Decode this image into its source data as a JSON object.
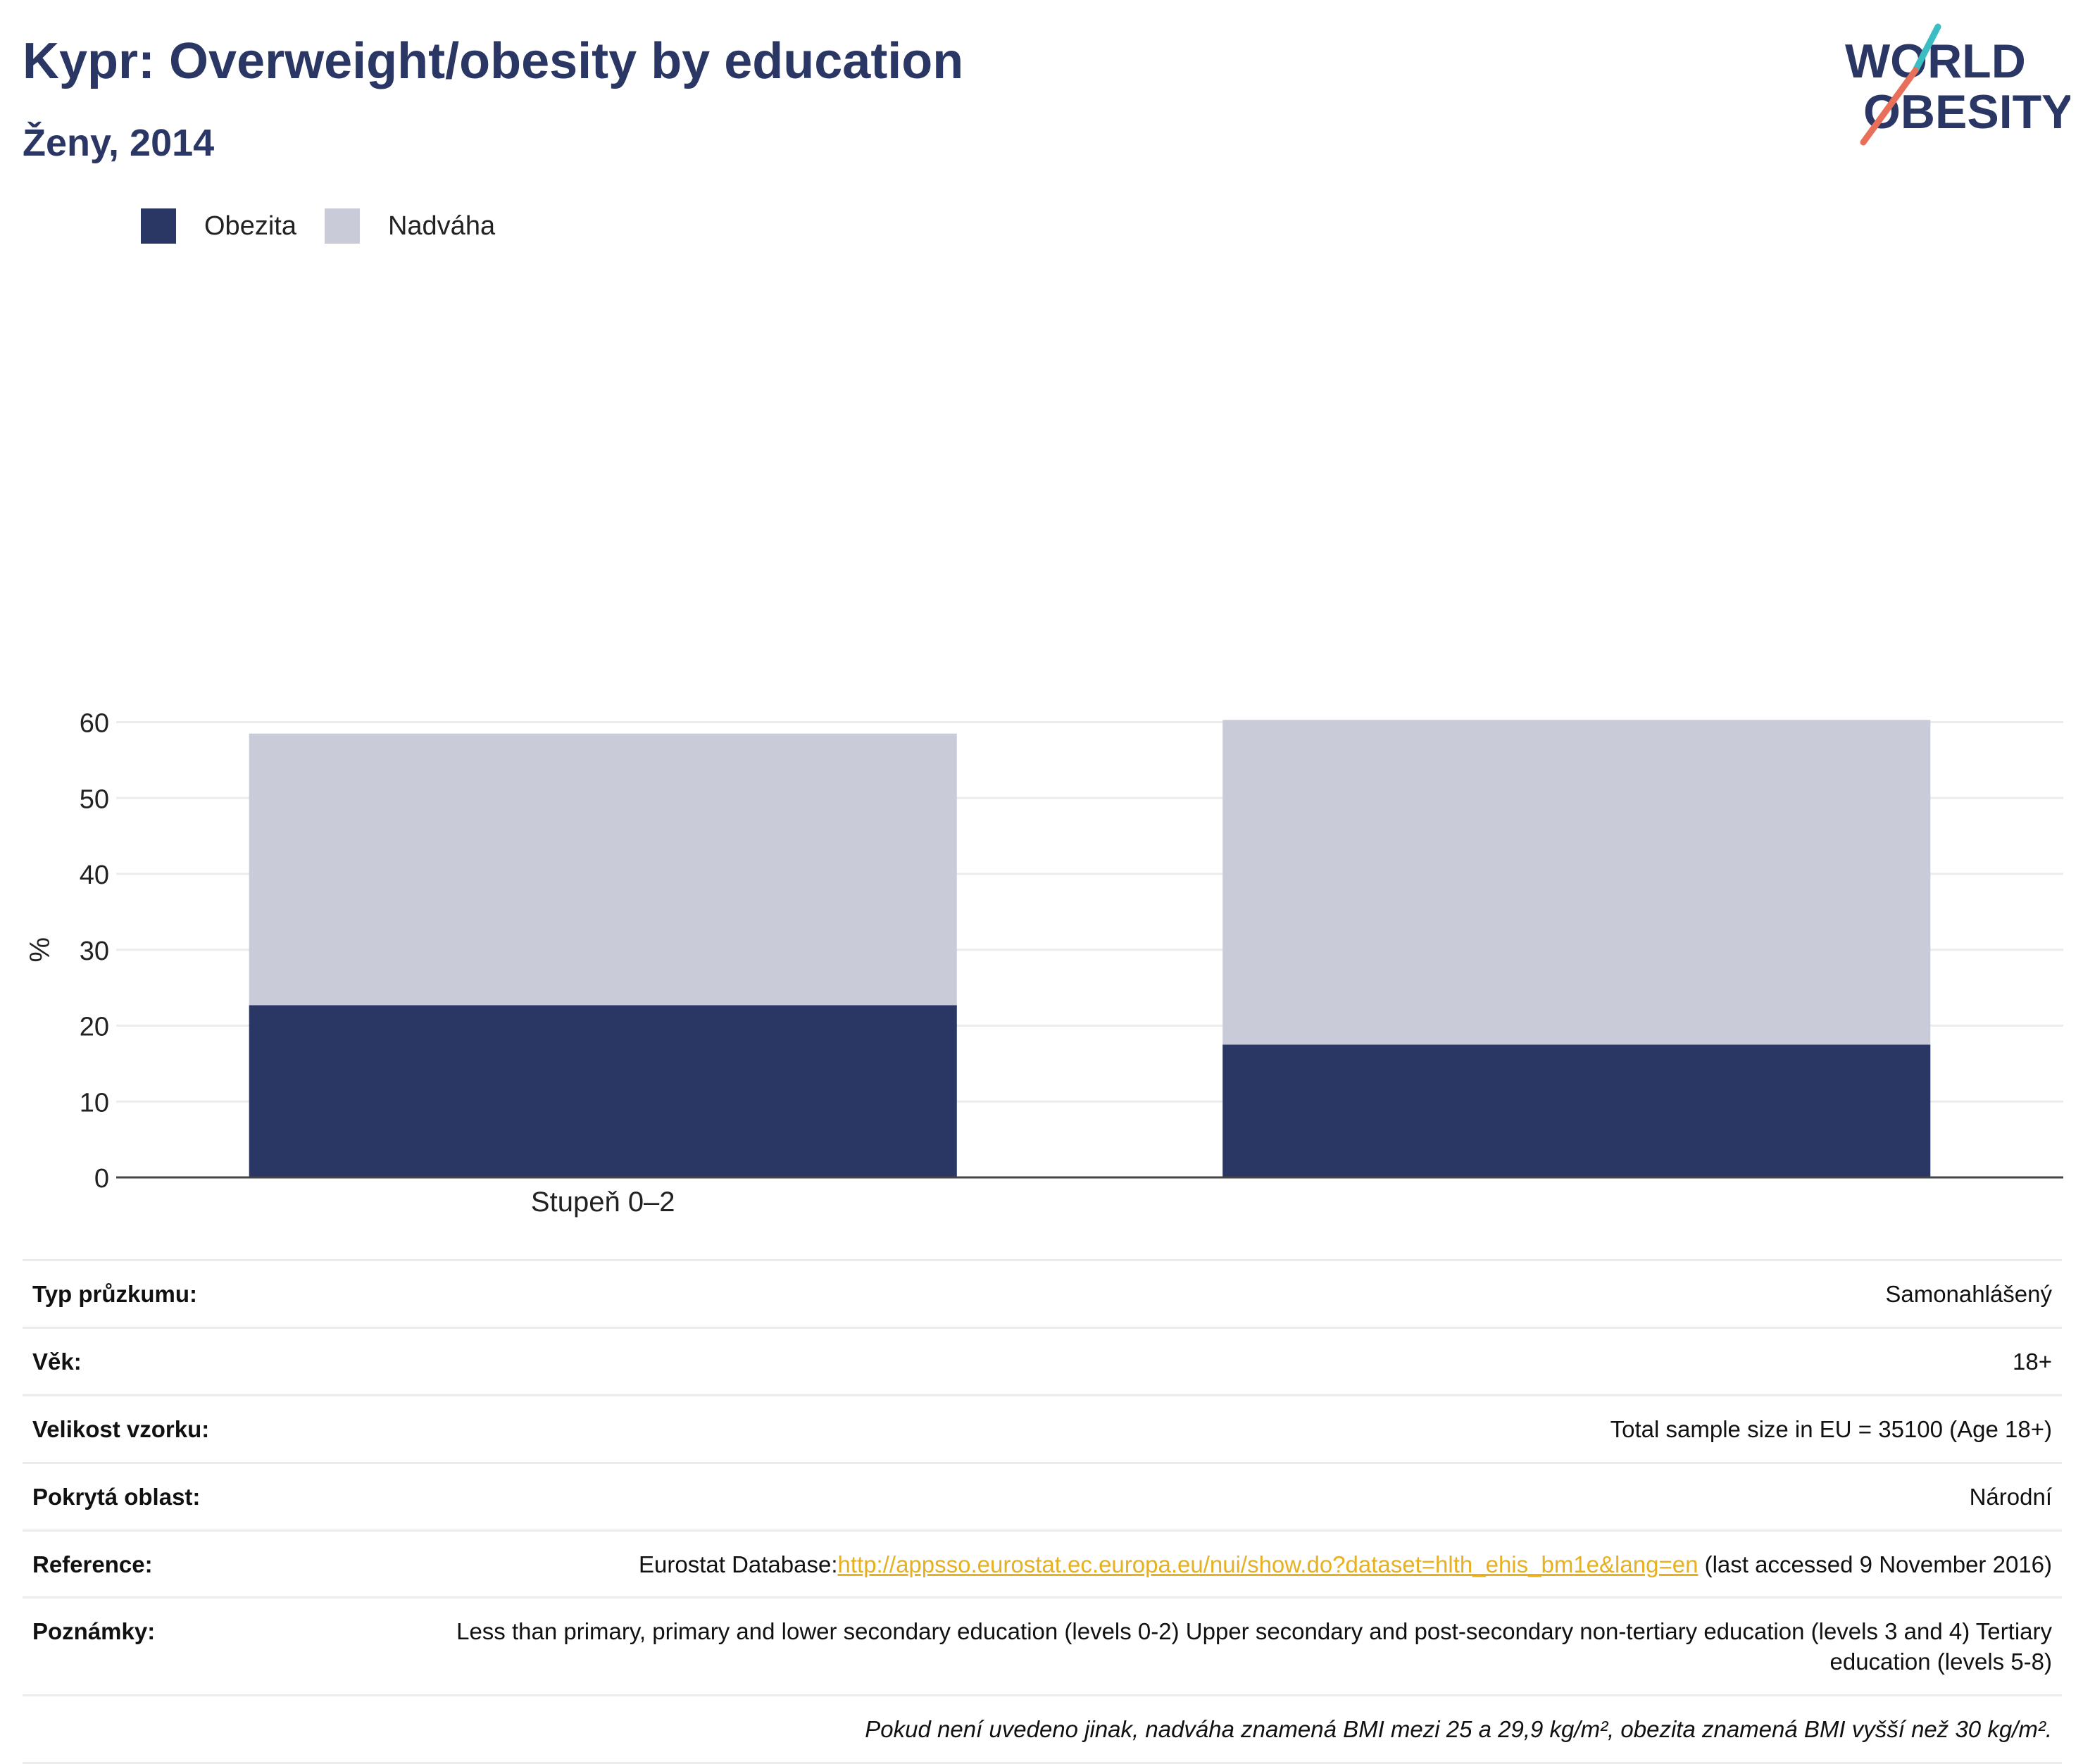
{
  "header": {
    "title": "Kypr: Overweight/obesity by education",
    "subtitle": "Ženy, 2014"
  },
  "logo": {
    "line1": "WORLD",
    "line2": "OBESITY"
  },
  "colors": {
    "obesity": "#2a3663",
    "overweight": "#c9ccd8",
    "accent_teal": "#3bbdc3",
    "accent_coral": "#e8705a",
    "link": "#e6b020"
  },
  "chart_data": {
    "type": "bar",
    "stacked": true,
    "categories": [
      "Stupeň 0–2",
      ""
    ],
    "series": [
      {
        "name": "Obezita",
        "values": [
          22.7,
          17.5
        ],
        "color": "#2a3663"
      },
      {
        "name": "Nadváha",
        "values": [
          35.8,
          42.8
        ],
        "color": "#c9ccd8"
      }
    ],
    "ylabel": "%",
    "ylim": [
      0,
      62
    ],
    "yticks": [
      0,
      10,
      20,
      30,
      40,
      50,
      60
    ],
    "grid": true,
    "legend_position": "top-left"
  },
  "meta": {
    "survey_type": {
      "label": "Typ průzkumu:",
      "value": "Samonahlášený"
    },
    "age": {
      "label": "Věk:",
      "value": "18+"
    },
    "sample_size": {
      "label": "Velikost vzorku:",
      "value": "Total sample size in EU = 35100 (Age 18+)"
    },
    "coverage": {
      "label": "Pokrytá oblast:",
      "value": "Národní"
    },
    "reference": {
      "label": "Reference:",
      "prefix": "Eurostat Database:",
      "link": "http://appsso.eurostat.ec.europa.eu/nui/show.do?dataset=hlth_ehis_bm1e&lang=en",
      "suffix": " (last accessed 9 November 2016)"
    },
    "notes": {
      "label": "Poznámky:",
      "value": "Less than primary, primary and lower secondary education (levels 0-2) Upper secondary and post-secondary non-tertiary education (levels 3 and 4) Tertiary education (levels 5-8)"
    },
    "footnote": "Pokud není uvedeno jinak, nadváha znamená BMI mezi 25 a 29,9 kg/m², obezita znamená BMI vyšší než 30 kg/m²."
  }
}
